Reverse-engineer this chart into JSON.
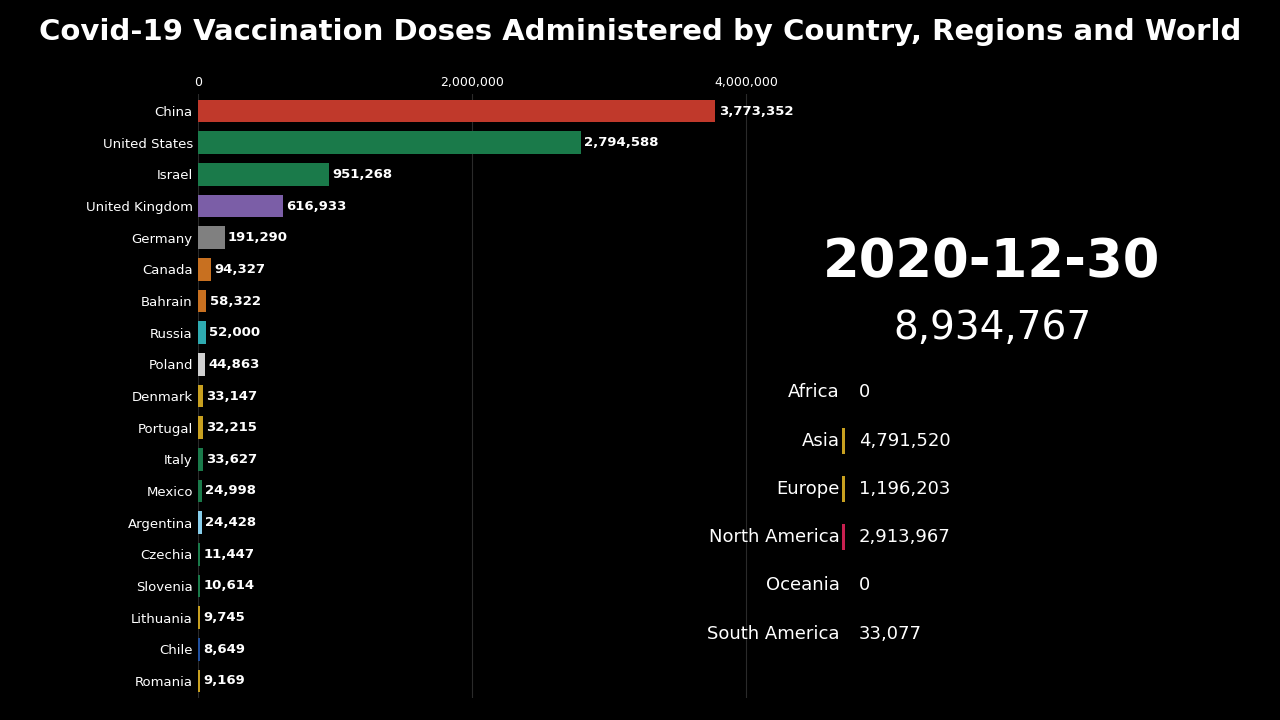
{
  "title": "Covid-19 Vaccination Doses Administered by Country, Regions and World",
  "date": "2020-12-30",
  "total": "8,934,767",
  "background_color": "#000000",
  "title_color": "#ffffff",
  "bar_text_color": "#ffffff",
  "countries": [
    {
      "name": "China",
      "value": 3773352,
      "color": "#c0392b"
    },
    {
      "name": "United States",
      "value": 2794588,
      "color": "#1a7a4a"
    },
    {
      "name": "Israel",
      "value": 951268,
      "color": "#1a7a4a"
    },
    {
      "name": "United Kingdom",
      "value": 616933,
      "color": "#7b5ea7"
    },
    {
      "name": "Germany",
      "value": 191290,
      "color": "#808080"
    },
    {
      "name": "Canada",
      "value": 94327,
      "color": "#c87020"
    },
    {
      "name": "Bahrain",
      "value": 58322,
      "color": "#c87020"
    },
    {
      "name": "Russia",
      "value": 52000,
      "color": "#2eaab0"
    },
    {
      "name": "Poland",
      "value": 44863,
      "color": "#d0d0d0"
    },
    {
      "name": "Denmark",
      "value": 33147,
      "color": "#c8a020"
    },
    {
      "name": "Portugal",
      "value": 32215,
      "color": "#c8a020"
    },
    {
      "name": "Italy",
      "value": 33627,
      "color": "#1a7a4a"
    },
    {
      "name": "Mexico",
      "value": 24998,
      "color": "#1a7a4a"
    },
    {
      "name": "Argentina",
      "value": 24428,
      "color": "#87ceeb"
    },
    {
      "name": "Czechia",
      "value": 11447,
      "color": "#1a7a4a"
    },
    {
      "name": "Slovenia",
      "value": 10614,
      "color": "#1a7a4a"
    },
    {
      "name": "Lithuania",
      "value": 9745,
      "color": "#c8a020"
    },
    {
      "name": "Chile",
      "value": 8649,
      "color": "#2050a0"
    },
    {
      "name": "Romania",
      "value": 9169,
      "color": "#c8a020"
    }
  ],
  "regions": [
    {
      "name": "Africa",
      "value": "0",
      "dot_color": null
    },
    {
      "name": "Asia",
      "value": "4,791,520",
      "dot_color": "#c8a020"
    },
    {
      "name": "Europe",
      "value": "1,196,203",
      "dot_color": "#c8a020"
    },
    {
      "name": "North America",
      "value": "2,913,967",
      "dot_color": "#c82050"
    },
    {
      "name": "Oceania",
      "value": "0",
      "dot_color": null
    },
    {
      "name": "South America",
      "value": "33,077",
      "dot_color": null
    }
  ],
  "xlim": [
    0,
    4300000
  ],
  "x_ticks": [
    0,
    2000000,
    4000000
  ],
  "x_tick_labels": [
    "0",
    "2,000,000",
    "4,000,000"
  ],
  "date_fontsize": 38,
  "total_fontsize": 28,
  "title_fontsize": 21,
  "bar_label_fontsize": 9.5,
  "country_label_fontsize": 9.5,
  "region_fontsize": 13,
  "tick_fontsize": 9
}
